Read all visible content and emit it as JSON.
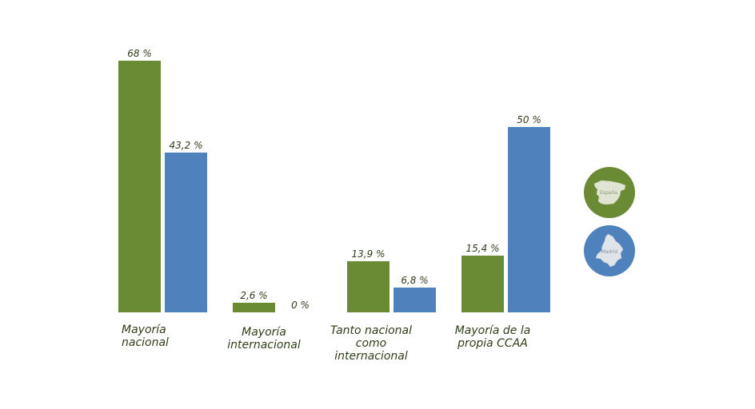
{
  "chart_data": {
    "type": "bar",
    "categories": [
      "Mayoría\nnacional",
      "Mayoría\ninternacional",
      "Tanto nacional\ncomo\ninternacional",
      "Mayoría de la\npropia CCAA"
    ],
    "series": [
      {
        "legend_icon": "spain-map-icon",
        "legend_text": "España",
        "color": "#6b8a34",
        "values": [
          68,
          2.6,
          13.9,
          15.4
        ],
        "labels": [
          "68 %",
          "2,6 %",
          "13,9 %",
          "15,4 %"
        ]
      },
      {
        "legend_icon": "madrid-map-icon",
        "legend_text": "Madrid",
        "color": "#4f81bd",
        "values": [
          43.2,
          0,
          6.8,
          50
        ],
        "labels": [
          "43,2 %",
          "0 %",
          "6,8 %",
          "50 %"
        ]
      }
    ],
    "ylim": [
      0,
      68
    ],
    "grid": false,
    "legend_position": "right"
  }
}
